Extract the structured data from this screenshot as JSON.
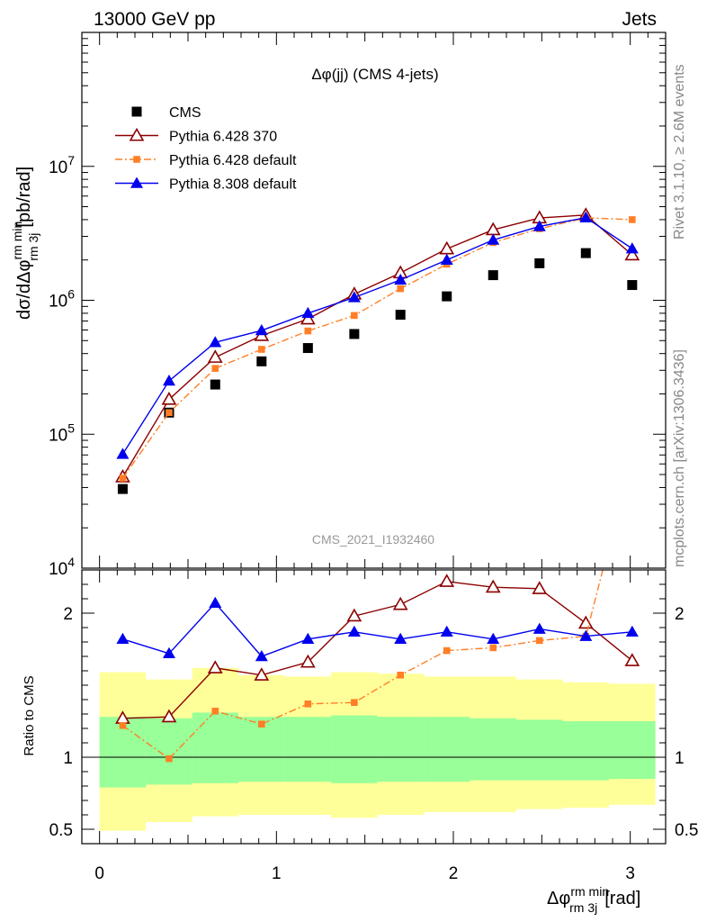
{
  "header": {
    "left": "13000 GeV pp",
    "right": "Jets"
  },
  "side_text": {
    "top": "Rivet 3.1.10, ≥ 2.6M events",
    "bottom": "mcplots.cern.ch [arXiv:1306.3436]"
  },
  "colors": {
    "cms": "#000000",
    "pythia6_370": "#8b0000",
    "pythia6_default": "#ff7f27",
    "pythia8": "#0000ee",
    "band_inner": "#99ff99",
    "band_outer": "#ffff99"
  },
  "chart_data": [
    {
      "type": "scatter",
      "panel": "main",
      "title": "Δφ(jj) (CMS 4-jets)",
      "ylabel": "dσ/dΔφ rm min rm 3j [pb/rad]",
      "yscale": "log",
      "ylim": [
        10000,
        100000000
      ],
      "xlim": [
        -0.1,
        3.2
      ],
      "y_tick_labels": [
        "10^4",
        "10^5",
        "10^6",
        "10^7"
      ],
      "watermark": "CMS_2021_I1932460",
      "legend_position": "top-left",
      "x": [
        0.131,
        0.393,
        0.654,
        0.916,
        1.178,
        1.44,
        1.701,
        1.963,
        2.225,
        2.487,
        2.749,
        3.011
      ],
      "series": [
        {
          "name": "CMS",
          "marker": "square",
          "values": [
            39000,
            145000,
            235000,
            350000,
            440000,
            560000,
            780000,
            1070000,
            1540000,
            1890000,
            2250000,
            1300000
          ]
        },
        {
          "name": "Pythia 6.428 370",
          "marker": "triangle-open",
          "values": [
            48000,
            182000,
            375000,
            545000,
            725000,
            1110000,
            1600000,
            2420000,
            3360000,
            4120000,
            4330000,
            2180000
          ]
        },
        {
          "name": "Pythia 6.428 default",
          "marker": "square-small",
          "values": [
            47000,
            145000,
            310000,
            430000,
            590000,
            770000,
            1220000,
            1860000,
            2700000,
            3420000,
            4130000,
            4000000
          ]
        },
        {
          "name": "Pythia 8.308 default",
          "marker": "triangle-filled",
          "values": [
            71000,
            250000,
            485000,
            595000,
            800000,
            1050000,
            1420000,
            2000000,
            2820000,
            3560000,
            4140000,
            2430000
          ]
        }
      ]
    },
    {
      "type": "line",
      "panel": "ratio",
      "ylabel": "Ratio to CMS",
      "xlabel": "Δφ rm min rm 3j [rad]",
      "ylim": [
        0.4,
        2.3
      ],
      "xlim": [
        -0.1,
        3.2
      ],
      "x_tick_labels": [
        "0",
        "1",
        "2",
        "3"
      ],
      "y_tick_labels": [
        "0.5",
        "1",
        "2"
      ],
      "reference_line": 1,
      "x": [
        0.131,
        0.393,
        0.654,
        0.916,
        1.178,
        1.44,
        1.701,
        1.963,
        2.225,
        2.487,
        2.749,
        3.011
      ],
      "band_edges": [
        0,
        0.262,
        0.524,
        0.785,
        1.047,
        1.309,
        1.571,
        1.833,
        2.094,
        2.356,
        2.618,
        2.88,
        3.142
      ],
      "band_inner": {
        "low": [
          0.79,
          0.81,
          0.82,
          0.83,
          0.83,
          0.82,
          0.83,
          0.83,
          0.84,
          0.84,
          0.84,
          0.85
        ],
        "high": [
          1.28,
          1.27,
          1.31,
          1.28,
          1.28,
          1.29,
          1.28,
          1.28,
          1.27,
          1.26,
          1.25,
          1.25
        ]
      },
      "band_outer": {
        "low": [
          0.49,
          0.55,
          0.59,
          0.6,
          0.6,
          0.58,
          0.6,
          0.62,
          0.62,
          0.64,
          0.65,
          0.67
        ],
        "high": [
          1.59,
          1.54,
          1.62,
          1.57,
          1.56,
          1.59,
          1.58,
          1.56,
          1.56,
          1.54,
          1.52,
          1.51
        ]
      },
      "series": [
        {
          "name": "Pythia 6.428 370",
          "values": [
            1.27,
            1.28,
            1.62,
            1.57,
            1.66,
            1.98,
            2.06,
            2.22,
            2.18,
            2.17,
            1.93,
            1.67
          ]
        },
        {
          "name": "Pythia 6.428 default",
          "values": [
            1.22,
            0.99,
            1.32,
            1.23,
            1.37,
            1.38,
            1.57,
            1.74,
            1.76,
            1.81,
            1.84,
            3.1
          ]
        },
        {
          "name": "Pythia 8.308 default",
          "values": [
            1.82,
            1.72,
            2.07,
            1.7,
            1.82,
            1.87,
            1.82,
            1.87,
            1.82,
            1.89,
            1.84,
            1.87
          ]
        }
      ]
    }
  ]
}
